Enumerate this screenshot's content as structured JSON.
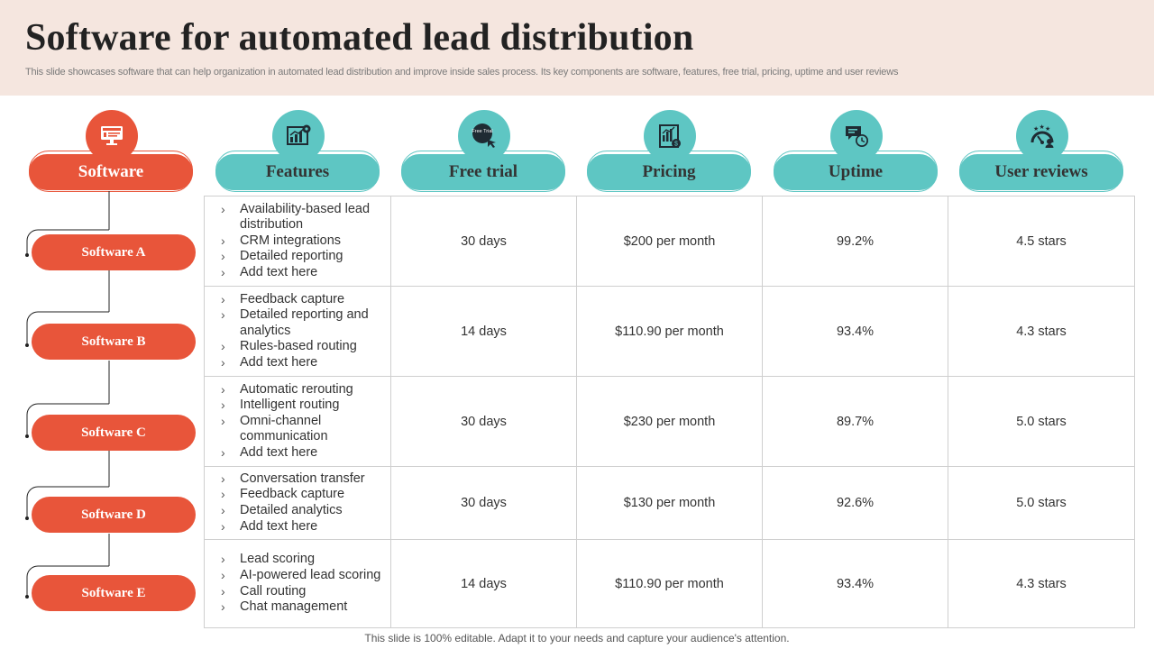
{
  "title": "Software for automated lead distribution",
  "subtitle": "This slide showcases software that can help organization in automated lead distribution and improve inside sales process. Its key components are software, features, free trial, pricing, uptime and user reviews",
  "columns": [
    {
      "label": "Software",
      "icon": "monitor-icon"
    },
    {
      "label": "Features",
      "icon": "bar-chart-gear-icon"
    },
    {
      "label": "Free trial",
      "icon": "free-trial-icon",
      "icon_text": "Free Trial"
    },
    {
      "label": "Pricing",
      "icon": "pricing-chart-icon"
    },
    {
      "label": "Uptime",
      "icon": "chat-clock-icon"
    },
    {
      "label": "User reviews",
      "icon": "star-rating-icon"
    }
  ],
  "rows": [
    {
      "software": "Software A",
      "features": [
        "Availability-based lead distribution",
        "CRM integrations",
        "Detailed reporting",
        "Add text here"
      ],
      "free_trial": "30 days",
      "pricing": "$200 per month",
      "uptime": "99.2%",
      "reviews": "4.5 stars"
    },
    {
      "software": "Software B",
      "features": [
        "Feedback capture",
        "Detailed reporting and analytics",
        "Rules-based routing",
        "Add text here"
      ],
      "free_trial": "14 days",
      "pricing": "$110.90 per month",
      "uptime": "93.4%",
      "reviews": "4.3 stars"
    },
    {
      "software": "Software C",
      "features": [
        "Automatic rerouting",
        "Intelligent routing",
        "Omni-channel communication",
        "Add text here"
      ],
      "free_trial": "30 days",
      "pricing": "$230 per month",
      "uptime": "89.7%",
      "reviews": "5.0 stars"
    },
    {
      "software": "Software D",
      "features": [
        "Conversation transfer",
        "Feedback capture",
        "Detailed analytics",
        "Add text here"
      ],
      "free_trial": "30 days",
      "pricing": "$130 per month",
      "uptime": "92.6%",
      "reviews": "5.0 stars"
    },
    {
      "software": "Software E",
      "features": [
        "Lead scoring",
        "AI-powered lead scoring",
        "Call routing",
        "Chat management"
      ],
      "free_trial": "14 days",
      "pricing": "$110.90 per month",
      "uptime": "93.4%",
      "reviews": "4.3 stars"
    }
  ],
  "footer": "This slide is 100% editable. Adapt it to your needs and capture your audience's attention.",
  "colors": {
    "accent_orange": "#e8553a",
    "accent_teal": "#5ec6c3",
    "header_bg": "#f5e6df"
  }
}
